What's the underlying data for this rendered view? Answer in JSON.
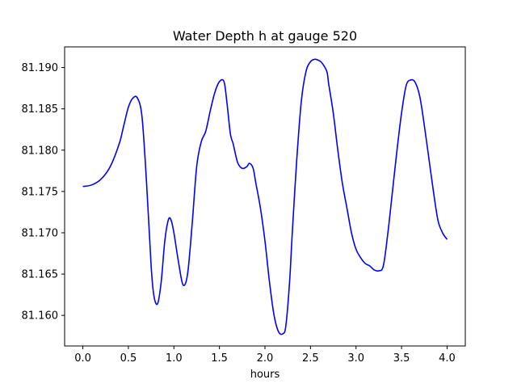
{
  "chart_data": {
    "type": "line",
    "title": "Water Depth h at gauge 520",
    "xlabel": "hours",
    "ylabel": "",
    "xlim": [
      -0.2,
      4.2
    ],
    "ylim": [
      81.1563,
      81.1925
    ],
    "grid": false,
    "x_ticks": [
      0.0,
      0.5,
      1.0,
      1.5,
      2.0,
      2.5,
      3.0,
      3.5,
      4.0
    ],
    "x_tick_labels": [
      "0.0",
      "0.5",
      "1.0",
      "1.5",
      "2.0",
      "2.5",
      "3.0",
      "3.5",
      "4.0"
    ],
    "y_ticks": [
      81.16,
      81.165,
      81.17,
      81.175,
      81.18,
      81.185,
      81.19
    ],
    "y_tick_labels": [
      "81.160",
      "81.165",
      "81.170",
      "81.175",
      "81.180",
      "81.185",
      "81.190"
    ],
    "series": [
      {
        "color": "#0000ff",
        "x": [
          0.0,
          0.1,
          0.2,
          0.3,
          0.4,
          0.45,
          0.5,
          0.55,
          0.6,
          0.65,
          0.7,
          0.75,
          0.78,
          0.82,
          0.86,
          0.9,
          0.94,
          0.97,
          1.0,
          1.05,
          1.1,
          1.15,
          1.2,
          1.25,
          1.3,
          1.35,
          1.4,
          1.45,
          1.5,
          1.55,
          1.58,
          1.62,
          1.65,
          1.7,
          1.75,
          1.8,
          1.83,
          1.87,
          1.9,
          1.95,
          2.0,
          2.05,
          2.1,
          2.15,
          2.2,
          2.23,
          2.27,
          2.3,
          2.35,
          2.4,
          2.45,
          2.5,
          2.55,
          2.6,
          2.63,
          2.68,
          2.7,
          2.75,
          2.8,
          2.85,
          2.9,
          2.95,
          3.0,
          3.05,
          3.1,
          3.15,
          3.2,
          3.25,
          3.3,
          3.35,
          3.4,
          3.45,
          3.5,
          3.55,
          3.6,
          3.65,
          3.7,
          3.75,
          3.8,
          3.85,
          3.9,
          3.95,
          4.0
        ],
        "values": [
          81.1756,
          81.1758,
          81.1765,
          81.178,
          81.1808,
          81.183,
          81.1852,
          81.1863,
          81.1863,
          81.184,
          81.176,
          81.166,
          81.1624,
          81.1614,
          81.164,
          81.169,
          81.1716,
          81.1715,
          81.17,
          81.1665,
          81.1637,
          81.165,
          81.171,
          81.178,
          81.181,
          81.1823,
          81.1848,
          81.187,
          81.1883,
          81.1883,
          81.186,
          81.182,
          81.1808,
          81.1785,
          81.1778,
          81.178,
          81.1784,
          81.1778,
          81.176,
          81.173,
          81.169,
          81.164,
          81.16,
          81.158,
          81.1578,
          81.1588,
          81.164,
          81.17,
          81.179,
          81.186,
          81.1895,
          81.1907,
          81.191,
          81.1908,
          81.1905,
          81.1895,
          81.188,
          81.1845,
          81.18,
          81.176,
          81.173,
          81.17,
          81.168,
          81.167,
          81.1663,
          81.166,
          81.1655,
          81.1654,
          81.166,
          81.17,
          81.175,
          81.18,
          81.1845,
          81.1878,
          81.1885,
          81.1882,
          81.1865,
          81.183,
          81.179,
          81.175,
          81.1715,
          81.17,
          81.1692
        ]
      }
    ]
  }
}
